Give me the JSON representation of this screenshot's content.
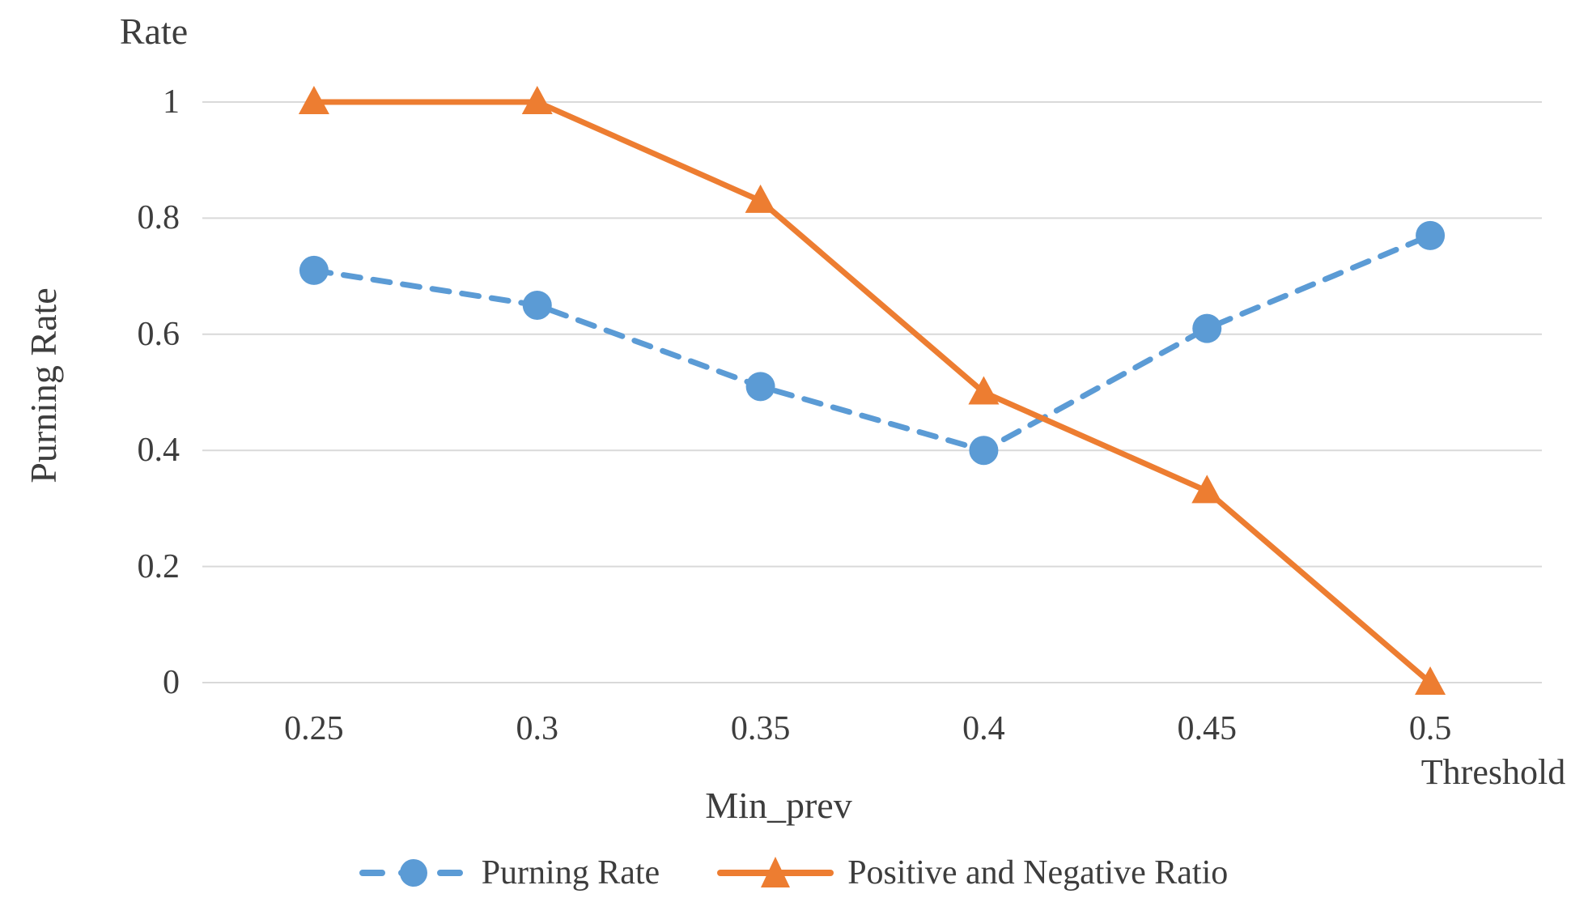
{
  "chart_data": {
    "type": "line",
    "title": "",
    "x": [
      0.25,
      0.3,
      0.35,
      0.4,
      0.45,
      0.5
    ],
    "x_tick_labels": [
      "0.25",
      "0.3",
      "0.35",
      "0.4",
      "0.45",
      "0.5"
    ],
    "y_ticks": [
      0,
      0.2,
      0.4,
      0.6,
      0.8,
      1
    ],
    "y_tick_labels": [
      "0",
      "0.2",
      "0.4",
      "0.6",
      "0.8",
      "1"
    ],
    "ylim": [
      0,
      1
    ],
    "xlabel": "Min_prev",
    "x_axis_right_label": "Threshold",
    "ylabel": "Purning Rate",
    "y_axis_top_label": "Rate",
    "grid": true,
    "gridline_color": "#d9d9d9",
    "legend_position": "bottom-center",
    "text_color": "#3d3d3d",
    "series": [
      {
        "name": "Purning Rate",
        "color": "#5B9BD5",
        "line_style": "dashed",
        "marker": "circle",
        "values": [
          0.71,
          0.65,
          0.51,
          0.4,
          0.61,
          0.77
        ]
      },
      {
        "name": "Positive and Negative Ratio",
        "color": "#ED7D31",
        "line_style": "solid",
        "marker": "triangle",
        "values": [
          1.0,
          1.0,
          0.83,
          0.5,
          0.33,
          0.0
        ]
      }
    ]
  }
}
